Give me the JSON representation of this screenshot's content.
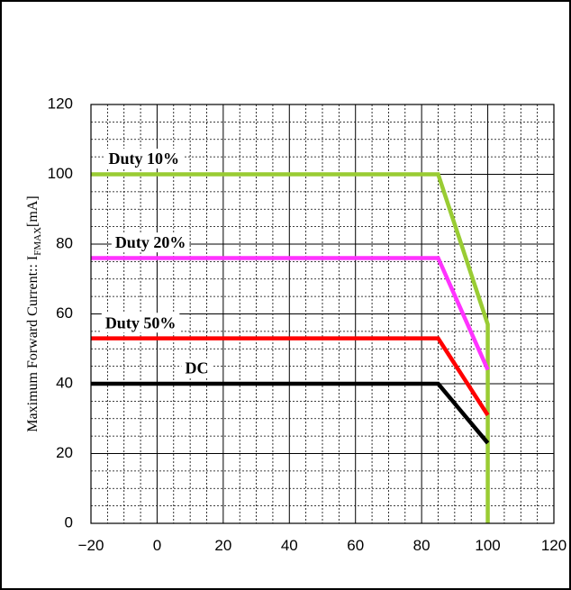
{
  "chart_data": {
    "type": "line",
    "title": "",
    "xlabel": "",
    "ylabel_prefix": "Maximum Forward Current:: I",
    "ylabel_sub": "FMAX",
    "ylabel_suffix": "[mA]",
    "xlim": [
      -20,
      120
    ],
    "ylim": [
      0,
      120
    ],
    "x_ticks": [
      -20,
      0,
      20,
      40,
      60,
      80,
      100,
      120
    ],
    "x_tick_labels": [
      "−20",
      "0",
      "20",
      "40",
      "60",
      "80",
      "100",
      "120"
    ],
    "y_ticks": [
      0,
      20,
      40,
      60,
      80,
      100,
      120
    ],
    "y_tick_labels": [
      "0",
      "20",
      "40",
      "60",
      "80",
      "100",
      "120"
    ],
    "grid": true,
    "series": [
      {
        "name": "Duty 10%",
        "color": "#99cc33",
        "points": [
          [
            -20,
            100
          ],
          [
            85,
            100
          ],
          [
            100,
            57
          ],
          [
            100,
            0
          ]
        ],
        "label_pos": [
          -4,
          104
        ]
      },
      {
        "name": "Duty 20%",
        "color": "#ff33ff",
        "points": [
          [
            -20,
            76
          ],
          [
            85,
            76
          ],
          [
            100,
            44
          ]
        ],
        "label_pos": [
          -2,
          80
        ]
      },
      {
        "name": "Duty 50%",
        "color": "#ff0000",
        "points": [
          [
            -20,
            53
          ],
          [
            85,
            53
          ],
          [
            100,
            31
          ]
        ],
        "label_pos": [
          -5,
          57
        ]
      },
      {
        "name": "DC",
        "color": "#000000",
        "points": [
          [
            -20,
            40
          ],
          [
            85,
            40
          ],
          [
            100,
            23
          ]
        ],
        "label_pos": [
          12,
          44
        ]
      }
    ]
  }
}
